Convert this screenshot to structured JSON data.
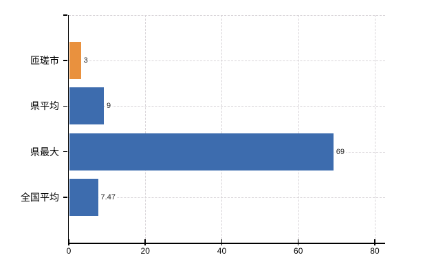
{
  "chart_data": {
    "type": "bar",
    "orientation": "horizontal",
    "title": "",
    "xlabel": "",
    "ylabel": "",
    "categories": [
      "匝瑳市",
      "県平均",
      "県最大",
      "全国平均"
    ],
    "values": [
      3,
      9,
      69,
      7.47
    ],
    "value_labels": [
      "3",
      "9",
      "69",
      "7.47"
    ],
    "x_ticks": [
      0,
      20,
      40,
      60,
      80
    ],
    "x_tick_labels": [
      "0",
      "20",
      "40",
      "60",
      "80"
    ],
    "xlim": [
      0,
      82.7
    ],
    "grid": true,
    "grid_style": "dashed",
    "legend": false,
    "bar_colors": [
      "#E9913E",
      "#3D6CAE",
      "#3D6CAE",
      "#3D6CAE"
    ]
  },
  "colors": {
    "highlight_orange": "#E9913E",
    "series_blue": "#3D6CAE",
    "axis": "#000000",
    "gridline": "#D7D3D7",
    "value_text": "#262626",
    "label_text": "#000000",
    "background": "#FFFFFF"
  }
}
